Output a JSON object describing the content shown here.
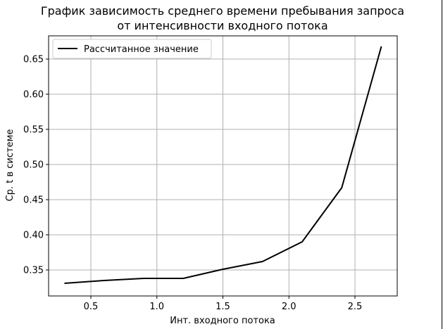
{
  "chart_data": {
    "type": "line",
    "title_line1": "График зависимость среднего времени пребывания запроса",
    "title_line2": "от интенсивности входного потока",
    "xlabel": "Инт. входного потока",
    "ylabel": "Ср. t в системе",
    "xlim": [
      0.18,
      2.82
    ],
    "ylim": [
      0.313,
      0.683
    ],
    "xticks": [
      0.5,
      1.0,
      1.5,
      2.0,
      2.5
    ],
    "xtick_labels": [
      "0.5",
      "1.0",
      "1.5",
      "2.0",
      "2.5"
    ],
    "yticks": [
      0.35,
      0.4,
      0.45,
      0.5,
      0.55,
      0.6,
      0.65
    ],
    "ytick_labels": [
      "0.35",
      "0.40",
      "0.45",
      "0.50",
      "0.55",
      "0.60",
      "0.65"
    ],
    "grid": true,
    "legend_position": "top-left",
    "series": [
      {
        "name": "Рассчитанное значение",
        "color": "#000000",
        "x": [
          0.3,
          0.6,
          0.9,
          1.2,
          1.5,
          1.8,
          2.1,
          2.4,
          2.7
        ],
        "y": [
          0.331,
          0.335,
          0.338,
          0.338,
          0.351,
          0.362,
          0.39,
          0.467,
          0.668
        ]
      }
    ]
  }
}
